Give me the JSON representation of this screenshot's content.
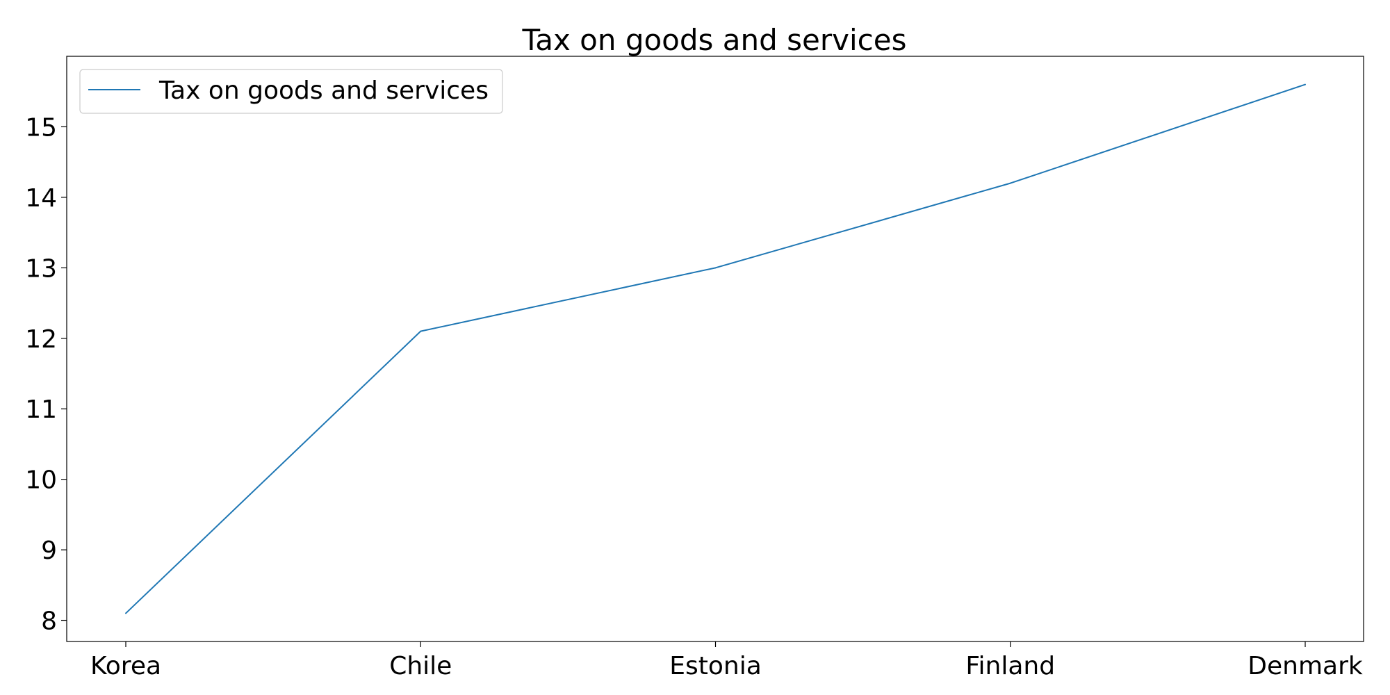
{
  "chart_data": {
    "type": "line",
    "title": "Tax on goods and services",
    "xlabel": "",
    "ylabel": "",
    "categories": [
      "Korea",
      "Chile",
      "Estonia",
      "Finland",
      "Denmark"
    ],
    "series": [
      {
        "name": "Tax on goods and services",
        "values": [
          8.1,
          12.1,
          13.0,
          14.2,
          15.6
        ],
        "color": "#1f77b4"
      }
    ],
    "ylim": [
      7.7,
      16.0
    ],
    "yticks": [
      "8",
      "9",
      "10",
      "11",
      "12",
      "13",
      "14",
      "15"
    ],
    "grid": false,
    "legend_position": "upper-left"
  }
}
